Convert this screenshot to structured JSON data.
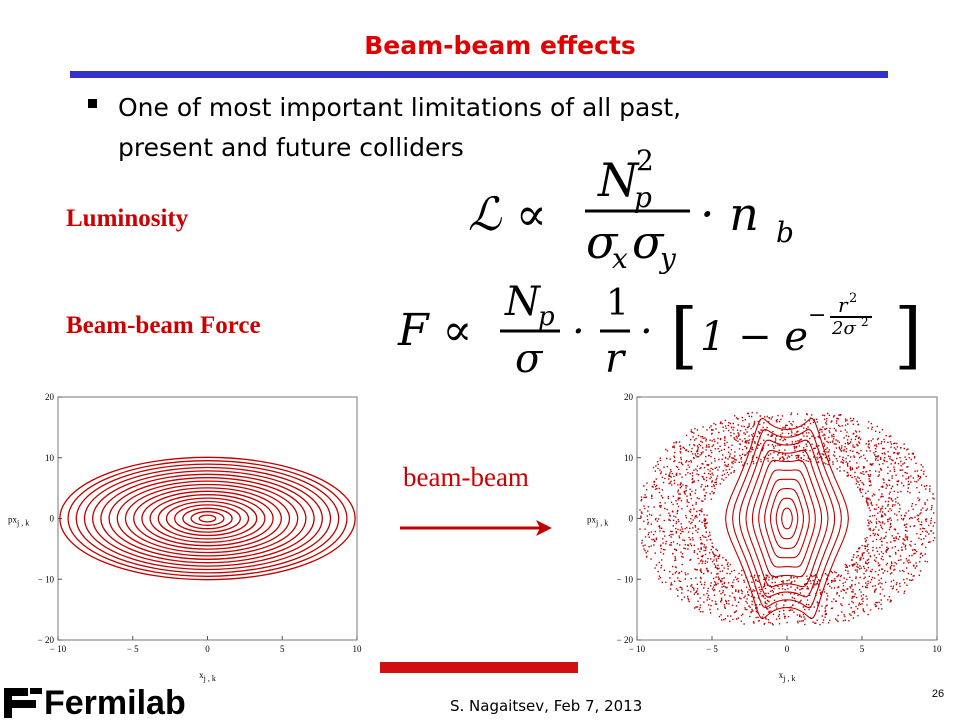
{
  "slide": {
    "title": "Beam-beam effects",
    "bullet": [
      "One of most important limitations of all past,",
      "present and future colliders"
    ],
    "luminosity_label": "Luminosity",
    "force_label": "Beam-beam Force",
    "formula_luminosity": {
      "lhs": "ℒ ∝",
      "num": "N",
      "num_sub": "p",
      "num_sup": "2",
      "den": "σ",
      "den_sub1": "x",
      "den_sub2": "y",
      "tail": "· n",
      "tail_sub": "b"
    },
    "formula_force": {
      "lhs": "F ∝",
      "num1": "N",
      "num1_sub": "p",
      "den1": "σ",
      "dot": "·",
      "num2": "1",
      "den2": "r",
      "bracket_open": "[",
      "one_minus": "1 − e",
      "exp_minus": "−",
      "exp_num": "r",
      "exp_num_sup": "2",
      "exp_den": "2σ",
      "exp_den_sup": "2",
      "bracket_close": "]"
    },
    "arrow_label": "beam-beam",
    "plots": [
      {
        "xlim": [
          -10,
          10
        ],
        "ylim": [
          -20,
          20
        ],
        "xticks": [
          {
            "value": -10,
            "label": "− 10"
          },
          {
            "value": -5,
            "label": "− 5"
          },
          0,
          5,
          10
        ],
        "yticks": [
          20,
          10,
          0,
          {
            "value": -10,
            "label": "− 10"
          },
          {
            "value": -20,
            "label": "− 20"
          }
        ],
        "xlabel": "x",
        "xlabel_sub": "j , k",
        "ylabel": "px",
        "ylabel_sub": "j , k"
      },
      {
        "xlim": [
          -10,
          10
        ],
        "ylim": [
          -20,
          20
        ],
        "xticks": [
          {
            "value": -10,
            "label": "− 10"
          },
          {
            "value": -5,
            "label": "− 5"
          },
          0,
          5,
          10
        ],
        "yticks": [
          20,
          10,
          0,
          {
            "value": -10,
            "label": "− 10"
          },
          {
            "value": -20,
            "label": "− 20"
          }
        ],
        "xlabel": "x",
        "xlabel_sub": "j , k",
        "ylabel": "px",
        "ylabel_sub": "j , k"
      }
    ],
    "logo": "Fermilab",
    "footer": "S.  Nagaitsev, Feb 7, 2013",
    "page_number": "26"
  }
}
